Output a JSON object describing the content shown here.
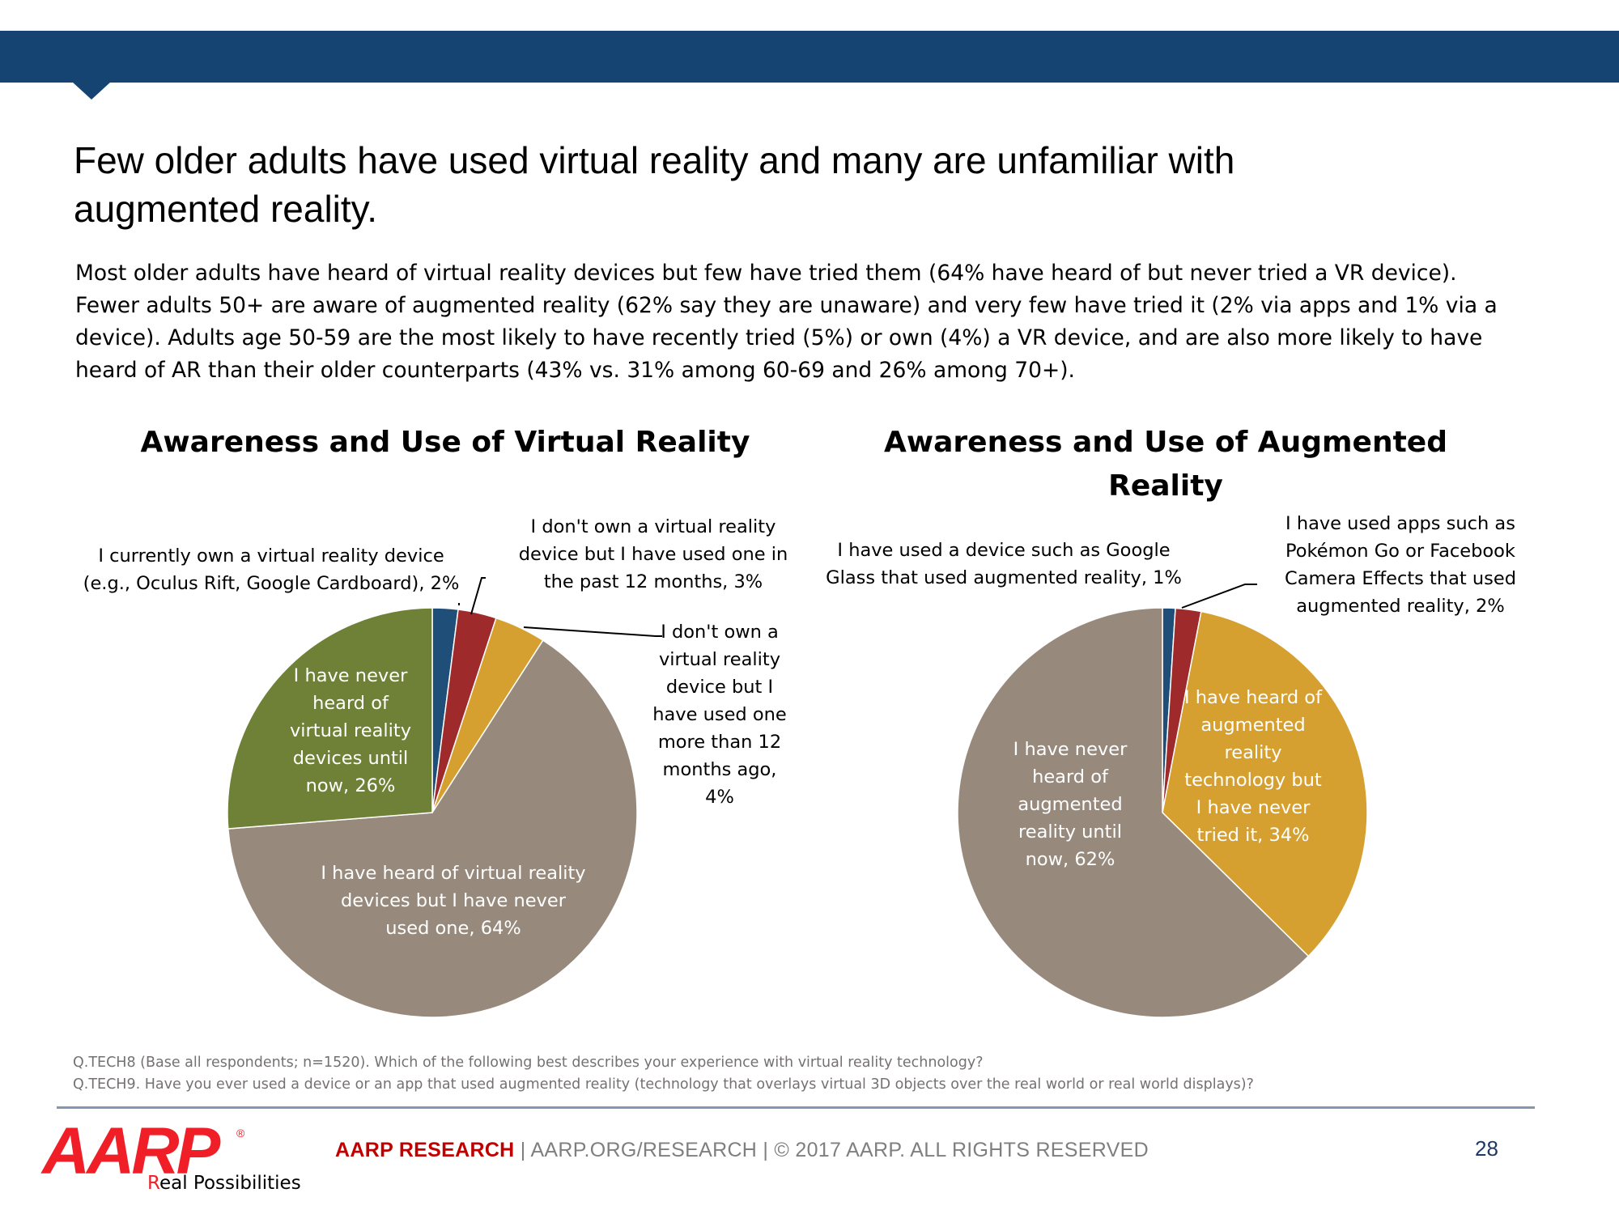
{
  "title_line1": "Few older adults have used virtual reality and many are unfamiliar with",
  "title_line2": "augmented reality.",
  "summary": [
    "Most older adults have heard of virtual reality devices but few have tried them (64% have heard of but never tried a VR device).",
    "Fewer adults 50+ are aware of augmented reality (62% say they are unaware) and very few have tried it (2% via apps and 1% via a",
    "device). Adults age 50-59 are the most likely to have recently tried (5%) or own (4%) a VR device, and are also more likely to have",
    "heard of AR than their older counterparts (43% vs. 31% among 60-69 and 26% among 70+)."
  ],
  "chart_data": [
    {
      "type": "pie",
      "title": "Awareness and Use of Virtual Reality",
      "labels": [
        "I currently own a virtual reality device (e.g., Oculus Rift, Google Cardboard)",
        "I don't own a virtual reality device but I have used one in the past 12 months",
        "I don't own a virtual reality device but I have used one more than 12 months ago",
        "I have heard of virtual reality devices but I have never used one",
        "I have never heard of virtual reality devices until now"
      ],
      "values": [
        2,
        3,
        4,
        64,
        26
      ],
      "colors": [
        "#1f4e79",
        "#9e2a2b",
        "#d5a02f",
        "#978a7d",
        "#6e8136"
      ],
      "label_lines": [
        [
          "I currently own a virtual reality device",
          "(e.g., Oculus Rift, Google Cardboard), 2%"
        ],
        [
          "I don't own a virtual reality",
          "device but I have used one in",
          "the past 12 months, 3%"
        ],
        [
          "I don't own a",
          "virtual reality",
          "device but I",
          "have used one",
          "more than 12",
          "months ago,",
          "4%"
        ],
        [
          "I have heard of virtual reality",
          "devices but I have never",
          "used one, 64%"
        ],
        [
          "I have never",
          "heard of",
          "virtual reality",
          "devices until",
          "now, 26%"
        ]
      ]
    },
    {
      "type": "pie",
      "title": "Awareness and Use of Augmented Reality",
      "title_lines": [
        "Awareness and Use of Augmented",
        "Reality"
      ],
      "labels": [
        "I have used a device such as Google Glass that used augmented reality",
        "I have used apps such as Pokémon Go or Facebook Camera Effects that used augmented reality",
        "I have heard of augmented reality technology but I have never tried it",
        "I have never heard of augmented reality until now"
      ],
      "values": [
        1,
        2,
        34,
        62
      ],
      "colors": [
        "#1f4e79",
        "#9e2a2b",
        "#d5a02f",
        "#978a7d"
      ],
      "label_lines": [
        [
          "I have used a device such as Google",
          "Glass that used augmented reality, 1%"
        ],
        [
          "I have used apps such as",
          "Pokémon Go or Facebook",
          "Camera Effects that used",
          "augmented reality, 2%"
        ],
        [
          "I have heard of",
          "augmented",
          "reality",
          "technology but",
          "I have never",
          "tried it, 34%"
        ],
        [
          "I have never",
          "heard of",
          "augmented",
          "reality until",
          "now, 62%"
        ]
      ]
    }
  ],
  "footnotes": [
    "Q.TECH8 (Base all respondents; n=1520). Which of the following best describes your experience with virtual reality technology?",
    "Q.TECH9. Have you ever used a device or an app that used augmented reality (technology that overlays virtual 3D objects over the real world or real world displays)?"
  ],
  "logo": {
    "wordmark": "AARP",
    "reg": "®",
    "tagline_first": "R",
    "tagline_rest": "eal Possibilities"
  },
  "footer": {
    "brand": "AARP RESEARCH",
    "text": " | AARP.ORG/RESEARCH  | © 2017 AARP. ALL RIGHTS RESERVED",
    "page": "28"
  }
}
